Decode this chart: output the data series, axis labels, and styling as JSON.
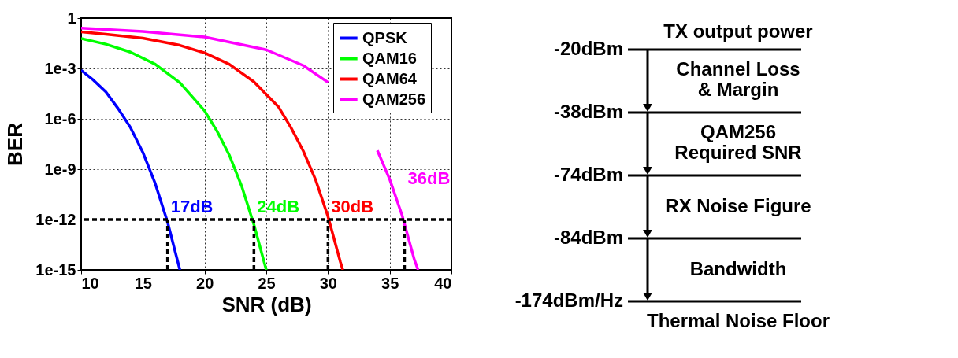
{
  "chart_data": [
    {
      "type": "line",
      "xlabel": "SNR (dB)",
      "ylabel": "BER",
      "log": "y",
      "grid": true,
      "legend": "top right",
      "xlim": [
        10,
        40
      ],
      "xticks": [
        10,
        15,
        20,
        25,
        30,
        35,
        40
      ],
      "ylim": [
        1e-15,
        1
      ],
      "yticks": [
        1,
        {
          "value": 0.001,
          "label": "1e-3"
        },
        {
          "value": 1e-06,
          "label": "1e-6"
        },
        {
          "value": 1e-09,
          "label": "1e-9"
        },
        {
          "value": 1e-12,
          "label": "1e-12"
        },
        {
          "value": 1e-15,
          "label": "1e-15"
        }
      ],
      "series": [
        {
          "name": "QPSK",
          "color": "#0000ff",
          "x": [
            10,
            11,
            12,
            13,
            14,
            15,
            16,
            17,
            18
          ],
          "values": [
            0.00078,
            0.0002,
            4e-05,
            4e-06,
            3e-07,
            1e-08,
            1.4e-10,
            7e-13,
            1e-15
          ]
        },
        {
          "name": "QAM16",
          "color": "#00ff00",
          "x": [
            10,
            12,
            14,
            16,
            18,
            20,
            21,
            22,
            23,
            24,
            25
          ],
          "values": [
            0.06,
            0.028,
            0.0094,
            0.0018,
            0.00014,
            3e-06,
            1.9e-07,
            7e-09,
            1e-10,
            5e-13,
            1e-15
          ]
        },
        {
          "name": "QAM64",
          "color": "#ff0000",
          "x": [
            10,
            12,
            15,
            18,
            20,
            22,
            24,
            26,
            27,
            28,
            29,
            30,
            31,
            31.2
          ],
          "values": [
            0.15,
            0.11,
            0.064,
            0.024,
            0.0085,
            0.0018,
            0.00016,
            5e-06,
            3e-07,
            1.2e-08,
            2.3e-10,
            1.5e-12,
            3e-15,
            1e-15
          ]
        },
        {
          "name": "QAM256",
          "color": "#ff00ff",
          "x": [
            10,
            15,
            20,
            25,
            28,
            30,
            32,
            33,
            34,
            35,
            36,
            37,
            37.3
          ],
          "values": [
            0.25,
            0.16,
            0.075,
            0.013,
            0.0015,
            0.00015,
            null,
            null,
            1.3e-08,
            2.5e-10,
            1.8e-12,
            4e-15,
            1e-15
          ]
        },
        {
          "type": "line",
          "color": "#000000",
          "line_style": "dashed",
          "x": [
            17,
            17
          ],
          "values": [
            1e-15,
            1e-12
          ]
        },
        {
          "type": "line",
          "color": "#000000",
          "line_style": "dashed",
          "x": [
            24,
            24
          ],
          "values": [
            1e-15,
            1e-12
          ]
        },
        {
          "type": "line",
          "color": "#000000",
          "line_style": "dashed",
          "x": [
            30,
            30
          ],
          "values": [
            1e-15,
            1e-12
          ]
        },
        {
          "type": "line",
          "color": "#000000",
          "line_style": "dashed",
          "x": [
            36.2,
            36.2
          ],
          "values": [
            1e-15,
            1e-12
          ]
        }
      ],
      "ref_lines": [
        {
          "axis": "y",
          "value": 1e-12,
          "color": "#000000",
          "line_style": "dashed"
        }
      ],
      "annotations": [
        "17dB",
        "24dB",
        "30dB",
        "36dB"
      ]
    },
    {
      "type": "other",
      "categories": [
        "-20dBm",
        "-38dBm",
        "-74dBm",
        "-84dBm",
        "-174dBm/Hz"
      ],
      "annotations": [
        "TX output power",
        "Channel Loss\n& Margin",
        "QAM256\nRequired SNR",
        "RX Noise Figure",
        "Bandwidth",
        "Thermal Noise Floor"
      ]
    }
  ]
}
